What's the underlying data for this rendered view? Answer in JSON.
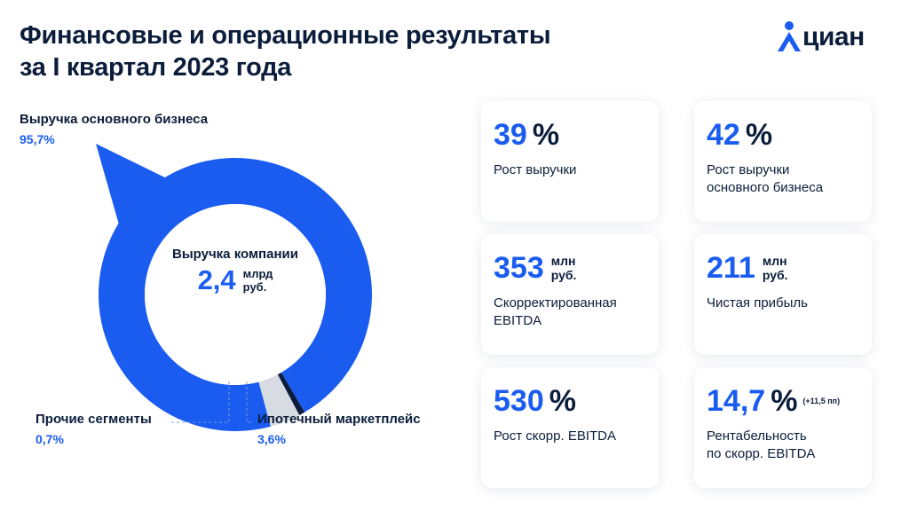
{
  "header": {
    "title_line1": "Финансовые и операционные результаты",
    "title_line2": "за I квартал 2023 года",
    "logo_text": "циан"
  },
  "chart_data": {
    "type": "pie",
    "center_label": "Выручка компании",
    "center_value": "2,4",
    "center_unit_line1": "млрд",
    "center_unit_line2": "руб.",
    "slices": [
      {
        "name": "Выручка основного бизнеса",
        "value": 95.7,
        "value_label": "95,7%",
        "color": "#1a5cf0"
      },
      {
        "name": "Ипотечный маркетплейс",
        "value": 3.6,
        "value_label": "3,6%",
        "color": "#d7dbe2"
      },
      {
        "name": "Прочие сегменты",
        "value": 0.7,
        "value_label": "0,7%",
        "color": "#0b1d3a"
      }
    ]
  },
  "cards": [
    {
      "value": "39",
      "suffix": "%",
      "unit_line1": "",
      "unit_line2": "",
      "note": "",
      "desc_line1": "Рост выручки",
      "desc_line2": ""
    },
    {
      "value": "42",
      "suffix": "%",
      "unit_line1": "",
      "unit_line2": "",
      "note": "",
      "desc_line1": "Рост выручки",
      "desc_line2": "основного бизнеса"
    },
    {
      "value": "353",
      "suffix": "",
      "unit_line1": "млн",
      "unit_line2": "руб.",
      "note": "",
      "desc_line1": "Скорректированная",
      "desc_line2": "EBITDA"
    },
    {
      "value": "211",
      "suffix": "",
      "unit_line1": "млн",
      "unit_line2": "руб.",
      "note": "",
      "desc_line1": "Чистая прибыль",
      "desc_line2": ""
    },
    {
      "value": "530",
      "suffix": "%",
      "unit_line1": "",
      "unit_line2": "",
      "note": "",
      "desc_line1": "Рост скорр. EBITDA",
      "desc_line2": ""
    },
    {
      "value": "14,7",
      "suffix": "%",
      "unit_line1": "",
      "unit_line2": "",
      "note": "(+11,5 пп)",
      "desc_line1": "Рентабельность",
      "desc_line2": "по скорр. EBITDA"
    }
  ]
}
